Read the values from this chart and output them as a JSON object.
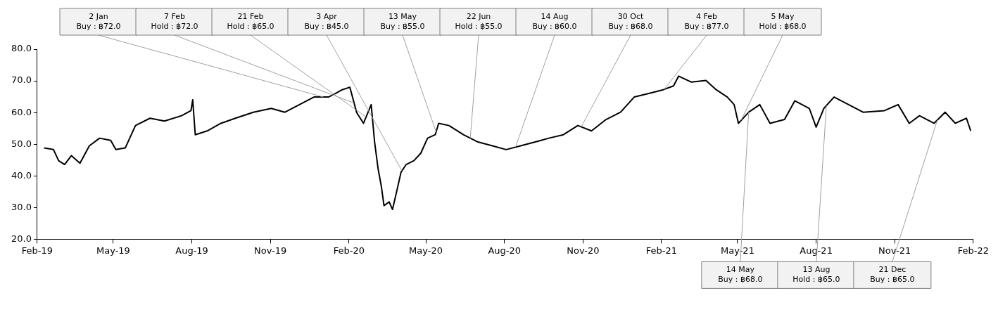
{
  "chart_data": {
    "type": "line",
    "x": [
      "2019-02-09",
      "2019-02-20",
      "2019-02-26",
      "2019-03-05",
      "2019-03-13",
      "2019-03-23",
      "2019-04-03",
      "2019-04-15",
      "2019-04-28",
      "2019-05-04",
      "2019-05-15",
      "2019-05-27",
      "2019-06-13",
      "2019-06-30",
      "2019-07-20",
      "2019-07-31",
      "2019-08-02",
      "2019-08-05",
      "2019-08-19",
      "2019-09-04",
      "2019-09-21",
      "2019-10-12",
      "2019-11-02",
      "2019-11-18",
      "2019-12-05",
      "2019-12-22",
      "2020-01-08",
      "2020-01-16",
      "2020-01-24",
      "2020-02-02",
      "2020-02-10",
      "2020-02-18",
      "2020-02-27",
      "2020-03-02",
      "2020-03-06",
      "2020-03-10",
      "2020-03-13",
      "2020-03-19",
      "2020-03-23",
      "2020-03-27",
      "2020-04-02",
      "2020-04-08",
      "2020-04-17",
      "2020-04-25",
      "2020-05-03",
      "2020-05-12",
      "2020-05-16",
      "2020-05-28",
      "2020-06-14",
      "2020-07-01",
      "2020-07-18",
      "2020-08-03",
      "2020-08-20",
      "2020-09-06",
      "2020-09-22",
      "2020-10-09",
      "2020-10-26",
      "2020-11-11",
      "2020-11-28",
      "2020-12-15",
      "2020-12-31",
      "2021-01-17",
      "2021-02-03",
      "2021-02-15",
      "2021-02-21",
      "2021-03-08",
      "2021-03-25",
      "2021-04-06",
      "2021-04-19",
      "2021-04-27",
      "2021-05-02",
      "2021-05-14",
      "2021-05-27",
      "2021-06-08",
      "2021-06-25",
      "2021-07-07",
      "2021-07-24",
      "2021-08-01",
      "2021-08-10",
      "2021-08-22",
      "2021-09-08",
      "2021-09-25",
      "2021-10-20",
      "2021-11-05",
      "2021-11-18",
      "2021-11-30",
      "2021-12-17",
      "2021-12-30",
      "2022-01-11",
      "2022-01-24",
      "2022-01-29"
    ],
    "series": [
      {
        "color": "#000000",
        "values": [
          48.8,
          48.3,
          44.8,
          43.6,
          46.4,
          44.0,
          49.5,
          51.9,
          51.2,
          48.3,
          48.8,
          55.9,
          58.2,
          57.3,
          59.0,
          60.6,
          64.0,
          53.0,
          54.2,
          56.6,
          58.2,
          60.1,
          61.3,
          60.1,
          62.5,
          64.9,
          64.9,
          66.0,
          67.2,
          68.0,
          60.0,
          56.6,
          62.5,
          50.7,
          42.4,
          36.5,
          30.6,
          31.8,
          29.4,
          34.1,
          41.2,
          43.6,
          44.8,
          47.1,
          51.9,
          53.0,
          56.6,
          55.9,
          53.0,
          50.7,
          49.5,
          48.3,
          49.5,
          50.7,
          51.9,
          53.0,
          55.9,
          54.2,
          57.8,
          60.1,
          64.9,
          66.0,
          67.2,
          68.4,
          71.5,
          69.6,
          70.1,
          67.2,
          64.9,
          62.5,
          56.6,
          60.1,
          62.5,
          56.6,
          57.8,
          63.7,
          61.3,
          55.4,
          61.3,
          64.9,
          62.5,
          60.1,
          60.6,
          62.5,
          56.6,
          59.0,
          56.6,
          60.1,
          56.6,
          58.2,
          54.2
        ]
      }
    ],
    "xlim": [
      "2019-02-01",
      "2022-02-01"
    ],
    "xticks": [
      {
        "value": "2019-02-01",
        "label": "Feb-19"
      },
      {
        "value": "2019-05-01",
        "label": "May-19"
      },
      {
        "value": "2019-08-01",
        "label": "Aug-19"
      },
      {
        "value": "2019-11-01",
        "label": "Nov-19"
      },
      {
        "value": "2020-02-01",
        "label": "Feb-20"
      },
      {
        "value": "2020-05-01",
        "label": "May-20"
      },
      {
        "value": "2020-08-01",
        "label": "Aug-20"
      },
      {
        "value": "2020-11-01",
        "label": "Nov-20"
      },
      {
        "value": "2021-02-01",
        "label": "Feb-21"
      },
      {
        "value": "2021-05-01",
        "label": "May-21"
      },
      {
        "value": "2021-08-01",
        "label": "Aug-21"
      },
      {
        "value": "2021-11-01",
        "label": "Nov-21"
      },
      {
        "value": "2022-02-01",
        "label": "Feb-22"
      }
    ],
    "ylim": [
      20,
      80
    ],
    "yticks": [
      {
        "value": 20,
        "label": "20.0"
      },
      {
        "value": 30,
        "label": "30.0"
      },
      {
        "value": 40,
        "label": "40.0"
      },
      {
        "value": 50,
        "label": "50.0"
      },
      {
        "value": 60,
        "label": "60.0"
      },
      {
        "value": 70,
        "label": "70.0"
      },
      {
        "value": 80,
        "label": "80.0"
      }
    ],
    "grid": false,
    "legend": false,
    "marker": "none",
    "line_style": "solid",
    "annotations": [
      {
        "text": "2 Jan\nBuy : ฿72.0",
        "x": "2020-01-02",
        "y": 64.9
      },
      {
        "text": "7 Feb\nHold : ฿72.0",
        "x": "2020-02-07",
        "y": 63
      },
      {
        "text": "21 Feb\nHold : ฿65.0",
        "x": "2020-02-21",
        "y": 58.6
      },
      {
        "text": "3 Apr\nBuy : ฿45.0",
        "x": "2020-04-03",
        "y": 41.6
      },
      {
        "text": "13 May\nBuy : ฿55.0",
        "x": "2020-05-13",
        "y": 53.9
      },
      {
        "text": "22 Jun\nHold : ฿55.0",
        "x": "2020-06-22",
        "y": 51.9
      },
      {
        "text": "14 Aug\nBuy : ฿60.0",
        "x": "2020-08-14",
        "y": 49.1
      },
      {
        "text": "30 Oct\nBuy : ฿68.0",
        "x": "2020-10-30",
        "y": 55.5
      },
      {
        "text": "4 Feb\nBuy : ฿77.0",
        "x": "2021-02-04",
        "y": 67.3
      },
      {
        "text": "5 May\nHold : ฿68.0",
        "x": "2021-05-05",
        "y": 57.5
      },
      {
        "text": "14 May\nBuy : ฿68.0",
        "x": "2021-05-14",
        "y": 60.1
      },
      {
        "text": "13 Aug\nHold : ฿65.0",
        "x": "2021-08-13",
        "y": 62.2
      },
      {
        "text": "21 Dec\nBuy : ฿65.0",
        "x": "2021-12-21",
        "y": 57.7
      }
    ]
  }
}
